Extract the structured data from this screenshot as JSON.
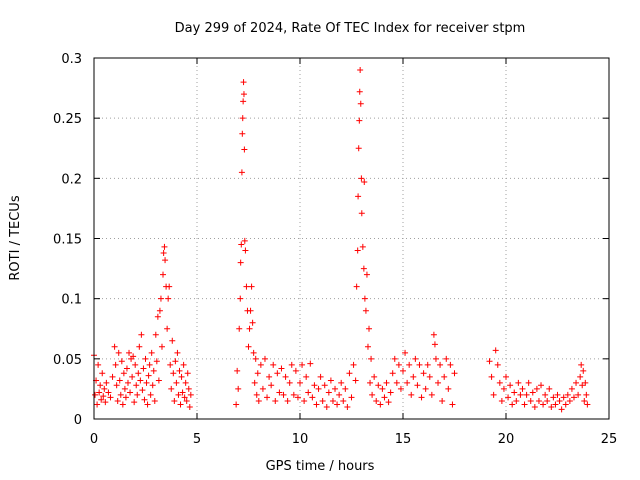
{
  "chart_data": {
    "type": "scatter",
    "title": "Day 299 of 2024, Rate Of TEC Index for receiver stpm",
    "xlabel": "GPS time / hours",
    "ylabel": "ROTI / TECUs",
    "xlim": [
      0,
      25
    ],
    "ylim": [
      0,
      0.3
    ],
    "x_ticks": [
      "0",
      "5",
      "10",
      "15",
      "20",
      "25"
    ],
    "y_ticks": [
      "0",
      "0.05",
      "0.1",
      "0.15",
      "0.2",
      "0.25",
      "0.3"
    ],
    "grid": true,
    "marker": "plus",
    "color": "#ff0000",
    "series": [
      {
        "name": "ROTI",
        "points": [
          [
            0.0,
            0.053
          ],
          [
            0.05,
            0.02
          ],
          [
            0.1,
            0.032
          ],
          [
            0.15,
            0.012
          ],
          [
            0.2,
            0.045
          ],
          [
            0.25,
            0.022
          ],
          [
            0.3,
            0.028
          ],
          [
            0.35,
            0.016
          ],
          [
            0.4,
            0.038
          ],
          [
            0.45,
            0.019
          ],
          [
            0.5,
            0.025
          ],
          [
            0.55,
            0.014
          ],
          [
            0.6,
            0.03
          ],
          [
            0.7,
            0.022
          ],
          [
            0.8,
            0.018
          ],
          [
            0.9,
            0.035
          ],
          [
            1.0,
            0.06
          ],
          [
            1.05,
            0.045
          ],
          [
            1.1,
            0.028
          ],
          [
            1.15,
            0.015
          ],
          [
            1.2,
            0.055
          ],
          [
            1.25,
            0.032
          ],
          [
            1.3,
            0.02
          ],
          [
            1.35,
            0.048
          ],
          [
            1.4,
            0.012
          ],
          [
            1.45,
            0.038
          ],
          [
            1.5,
            0.025
          ],
          [
            1.55,
            0.018
          ],
          [
            1.6,
            0.042
          ],
          [
            1.65,
            0.03
          ],
          [
            1.7,
            0.055
          ],
          [
            1.75,
            0.022
          ],
          [
            1.8,
            0.05
          ],
          [
            1.85,
            0.035
          ],
          [
            1.9,
            0.052
          ],
          [
            1.95,
            0.014
          ],
          [
            2.0,
            0.045
          ],
          [
            2.05,
            0.028
          ],
          [
            2.1,
            0.02
          ],
          [
            2.15,
            0.038
          ],
          [
            2.2,
            0.06
          ],
          [
            2.25,
            0.032
          ],
          [
            2.3,
            0.07
          ],
          [
            2.35,
            0.024
          ],
          [
            2.4,
            0.042
          ],
          [
            2.45,
            0.016
          ],
          [
            2.5,
            0.05
          ],
          [
            2.55,
            0.03
          ],
          [
            2.6,
            0.012
          ],
          [
            2.65,
            0.036
          ],
          [
            2.7,
            0.045
          ],
          [
            2.75,
            0.02
          ],
          [
            2.8,
            0.055
          ],
          [
            2.85,
            0.028
          ],
          [
            2.9,
            0.04
          ],
          [
            2.95,
            0.015
          ],
          [
            3.0,
            0.07
          ],
          [
            3.05,
            0.048
          ],
          [
            3.1,
            0.085
          ],
          [
            3.15,
            0.032
          ],
          [
            3.2,
            0.09
          ],
          [
            3.25,
            0.1
          ],
          [
            3.3,
            0.06
          ],
          [
            3.35,
            0.12
          ],
          [
            3.38,
            0.138
          ],
          [
            3.42,
            0.143
          ],
          [
            3.45,
            0.132
          ],
          [
            3.5,
            0.11
          ],
          [
            3.55,
            0.075
          ],
          [
            3.6,
            0.1
          ],
          [
            3.65,
            0.11
          ],
          [
            3.7,
            0.045
          ],
          [
            3.75,
            0.025
          ],
          [
            3.8,
            0.065
          ],
          [
            3.85,
            0.038
          ],
          [
            3.9,
            0.015
          ],
          [
            3.95,
            0.048
          ],
          [
            4.0,
            0.03
          ],
          [
            4.05,
            0.055
          ],
          [
            4.1,
            0.02
          ],
          [
            4.15,
            0.04
          ],
          [
            4.2,
            0.012
          ],
          [
            4.25,
            0.035
          ],
          [
            4.3,
            0.022
          ],
          [
            4.35,
            0.045
          ],
          [
            4.4,
            0.018
          ],
          [
            4.45,
            0.03
          ],
          [
            4.5,
            0.015
          ],
          [
            4.55,
            0.038
          ],
          [
            4.6,
            0.025
          ],
          [
            4.65,
            0.01
          ],
          [
            4.7,
            0.02
          ],
          [
            6.9,
            0.012
          ],
          [
            6.95,
            0.04
          ],
          [
            7.0,
            0.025
          ],
          [
            7.05,
            0.075
          ],
          [
            7.1,
            0.1
          ],
          [
            7.12,
            0.13
          ],
          [
            7.15,
            0.145
          ],
          [
            7.18,
            0.205
          ],
          [
            7.2,
            0.237
          ],
          [
            7.22,
            0.25
          ],
          [
            7.24,
            0.264
          ],
          [
            7.26,
            0.28
          ],
          [
            7.28,
            0.27
          ],
          [
            7.3,
            0.224
          ],
          [
            7.32,
            0.148
          ],
          [
            7.35,
            0.14
          ],
          [
            7.4,
            0.11
          ],
          [
            7.45,
            0.09
          ],
          [
            7.5,
            0.06
          ],
          [
            7.55,
            0.075
          ],
          [
            7.6,
            0.09
          ],
          [
            7.65,
            0.11
          ],
          [
            7.7,
            0.08
          ],
          [
            7.75,
            0.055
          ],
          [
            7.8,
            0.03
          ],
          [
            7.85,
            0.05
          ],
          [
            7.9,
            0.02
          ],
          [
            7.95,
            0.038
          ],
          [
            8.0,
            0.015
          ],
          [
            8.1,
            0.045
          ],
          [
            8.2,
            0.025
          ],
          [
            8.3,
            0.05
          ],
          [
            8.4,
            0.018
          ],
          [
            8.5,
            0.035
          ],
          [
            8.6,
            0.028
          ],
          [
            8.7,
            0.045
          ],
          [
            8.8,
            0.015
          ],
          [
            8.9,
            0.038
          ],
          [
            9.0,
            0.022
          ],
          [
            9.1,
            0.042
          ],
          [
            9.2,
            0.02
          ],
          [
            9.3,
            0.035
          ],
          [
            9.4,
            0.015
          ],
          [
            9.5,
            0.03
          ],
          [
            9.6,
            0.045
          ],
          [
            9.7,
            0.02
          ],
          [
            9.8,
            0.04
          ],
          [
            9.9,
            0.018
          ],
          [
            10.0,
            0.03
          ],
          [
            10.1,
            0.045
          ],
          [
            10.2,
            0.015
          ],
          [
            10.3,
            0.035
          ],
          [
            10.4,
            0.022
          ],
          [
            10.5,
            0.046
          ],
          [
            10.6,
            0.018
          ],
          [
            10.7,
            0.028
          ],
          [
            10.8,
            0.012
          ],
          [
            10.9,
            0.025
          ],
          [
            11.0,
            0.035
          ],
          [
            11.1,
            0.015
          ],
          [
            11.2,
            0.028
          ],
          [
            11.3,
            0.01
          ],
          [
            11.4,
            0.022
          ],
          [
            11.5,
            0.032
          ],
          [
            11.6,
            0.015
          ],
          [
            11.7,
            0.025
          ],
          [
            11.8,
            0.012
          ],
          [
            11.9,
            0.02
          ],
          [
            12.0,
            0.03
          ],
          [
            12.1,
            0.015
          ],
          [
            12.2,
            0.025
          ],
          [
            12.3,
            0.01
          ],
          [
            12.4,
            0.038
          ],
          [
            12.5,
            0.018
          ],
          [
            12.6,
            0.045
          ],
          [
            12.7,
            0.032
          ],
          [
            12.75,
            0.11
          ],
          [
            12.8,
            0.14
          ],
          [
            12.82,
            0.185
          ],
          [
            12.85,
            0.225
          ],
          [
            12.88,
            0.248
          ],
          [
            12.9,
            0.272
          ],
          [
            12.92,
            0.29
          ],
          [
            12.95,
            0.262
          ],
          [
            12.98,
            0.2
          ],
          [
            13.0,
            0.171
          ],
          [
            13.05,
            0.143
          ],
          [
            13.1,
            0.125
          ],
          [
            13.12,
            0.197
          ],
          [
            13.15,
            0.1
          ],
          [
            13.2,
            0.09
          ],
          [
            13.25,
            0.12
          ],
          [
            13.3,
            0.06
          ],
          [
            13.35,
            0.075
          ],
          [
            13.4,
            0.03
          ],
          [
            13.45,
            0.05
          ],
          [
            13.5,
            0.02
          ],
          [
            13.6,
            0.035
          ],
          [
            13.7,
            0.015
          ],
          [
            13.8,
            0.028
          ],
          [
            13.9,
            0.012
          ],
          [
            14.0,
            0.025
          ],
          [
            14.1,
            0.018
          ],
          [
            14.2,
            0.03
          ],
          [
            14.3,
            0.014
          ],
          [
            14.4,
            0.022
          ],
          [
            14.5,
            0.038
          ],
          [
            14.6,
            0.05
          ],
          [
            14.7,
            0.03
          ],
          [
            14.8,
            0.045
          ],
          [
            14.9,
            0.025
          ],
          [
            15.0,
            0.04
          ],
          [
            15.1,
            0.055
          ],
          [
            15.2,
            0.03
          ],
          [
            15.3,
            0.045
          ],
          [
            15.4,
            0.02
          ],
          [
            15.5,
            0.035
          ],
          [
            15.6,
            0.05
          ],
          [
            15.7,
            0.028
          ],
          [
            15.8,
            0.045
          ],
          [
            15.9,
            0.018
          ],
          [
            16.0,
            0.038
          ],
          [
            16.1,
            0.025
          ],
          [
            16.2,
            0.045
          ],
          [
            16.3,
            0.035
          ],
          [
            16.4,
            0.02
          ],
          [
            16.5,
            0.07
          ],
          [
            16.55,
            0.062
          ],
          [
            16.6,
            0.05
          ],
          [
            16.7,
            0.03
          ],
          [
            16.8,
            0.045
          ],
          [
            16.9,
            0.015
          ],
          [
            17.0,
            0.035
          ],
          [
            17.1,
            0.05
          ],
          [
            17.2,
            0.025
          ],
          [
            17.3,
            0.045
          ],
          [
            17.4,
            0.012
          ],
          [
            17.5,
            0.038
          ],
          [
            19.2,
            0.048
          ],
          [
            19.3,
            0.035
          ],
          [
            19.4,
            0.02
          ],
          [
            19.5,
            0.057
          ],
          [
            19.6,
            0.045
          ],
          [
            19.7,
            0.03
          ],
          [
            19.8,
            0.015
          ],
          [
            19.9,
            0.025
          ],
          [
            20.0,
            0.035
          ],
          [
            20.1,
            0.018
          ],
          [
            20.2,
            0.028
          ],
          [
            20.3,
            0.012
          ],
          [
            20.4,
            0.022
          ],
          [
            20.5,
            0.015
          ],
          [
            20.6,
            0.03
          ],
          [
            20.7,
            0.02
          ],
          [
            20.8,
            0.025
          ],
          [
            20.9,
            0.012
          ],
          [
            21.0,
            0.02
          ],
          [
            21.1,
            0.03
          ],
          [
            21.2,
            0.015
          ],
          [
            21.3,
            0.022
          ],
          [
            21.4,
            0.01
          ],
          [
            21.5,
            0.025
          ],
          [
            21.6,
            0.015
          ],
          [
            21.7,
            0.028
          ],
          [
            21.8,
            0.012
          ],
          [
            21.9,
            0.02
          ],
          [
            22.0,
            0.015
          ],
          [
            22.1,
            0.025
          ],
          [
            22.2,
            0.01
          ],
          [
            22.3,
            0.018
          ],
          [
            22.4,
            0.012
          ],
          [
            22.5,
            0.02
          ],
          [
            22.6,
            0.015
          ],
          [
            22.7,
            0.008
          ],
          [
            22.8,
            0.018
          ],
          [
            22.9,
            0.012
          ],
          [
            23.0,
            0.02
          ],
          [
            23.1,
            0.015
          ],
          [
            23.2,
            0.025
          ],
          [
            23.3,
            0.018
          ],
          [
            23.4,
            0.03
          ],
          [
            23.5,
            0.02
          ],
          [
            23.6,
            0.035
          ],
          [
            23.65,
            0.045
          ],
          [
            23.7,
            0.028
          ],
          [
            23.75,
            0.04
          ],
          [
            23.8,
            0.015
          ],
          [
            23.85,
            0.03
          ],
          [
            23.9,
            0.02
          ],
          [
            23.95,
            0.012
          ]
        ]
      }
    ]
  }
}
